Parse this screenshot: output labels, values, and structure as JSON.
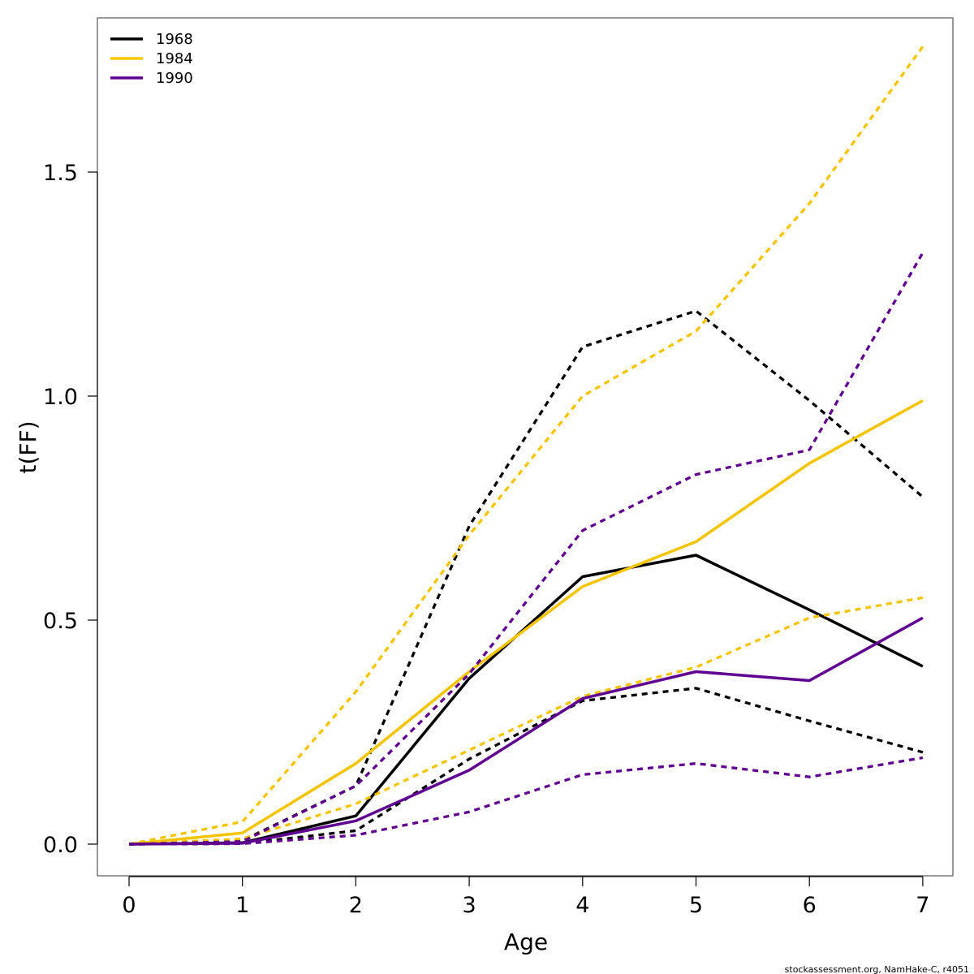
{
  "chart_data": {
    "type": "line",
    "xlabel": "Age",
    "ylabel": "t(FF)",
    "xlim": [
      0,
      7
    ],
    "ylim": [
      0,
      1.8
    ],
    "xticks": [
      "0",
      "1",
      "2",
      "3",
      "4",
      "5",
      "6",
      "7"
    ],
    "yticks": [
      "0.0",
      "0.5",
      "1.0",
      "1.5"
    ],
    "x": [
      0,
      1,
      2,
      3,
      4,
      5,
      6,
      7
    ],
    "legend_position": "top-left",
    "grid": false,
    "series": [
      {
        "name": "1968",
        "color": "#000000",
        "style": "solid",
        "values": [
          0.0,
          0.003,
          0.063,
          0.37,
          0.597,
          0.645,
          0.523,
          0.397
        ]
      },
      {
        "name": "",
        "color": "#000000",
        "style": "dashed",
        "values": [
          0.0,
          0.008,
          0.13,
          0.71,
          1.11,
          1.19,
          0.99,
          0.775
        ]
      },
      {
        "name": "",
        "color": "#000000",
        "style": "dashed",
        "values": [
          0.0,
          0.001,
          0.03,
          0.19,
          0.32,
          0.348,
          0.275,
          0.205
        ]
      },
      {
        "name": "1984",
        "color": "#F5C400",
        "style": "solid",
        "values": [
          0.0,
          0.025,
          0.18,
          0.385,
          0.575,
          0.675,
          0.85,
          0.99
        ]
      },
      {
        "name": "",
        "color": "#F5C400",
        "style": "dashed",
        "values": [
          0.0,
          0.05,
          0.34,
          0.69,
          1.0,
          1.145,
          1.43,
          1.78
        ]
      },
      {
        "name": "",
        "color": "#F5C400",
        "style": "dashed",
        "values": [
          0.0,
          0.012,
          0.09,
          0.21,
          0.33,
          0.395,
          0.505,
          0.55
        ]
      },
      {
        "name": "1990",
        "color": "#5F0090",
        "style": "solid",
        "values": [
          0.0,
          0.002,
          0.052,
          0.165,
          0.325,
          0.385,
          0.365,
          0.505
        ]
      },
      {
        "name": "",
        "color": "#5F0090",
        "style": "dashed",
        "values": [
          0.0,
          0.006,
          0.13,
          0.38,
          0.7,
          0.825,
          0.88,
          1.32
        ]
      },
      {
        "name": "",
        "color": "#5F0090",
        "style": "dashed",
        "values": [
          0.0,
          0.001,
          0.02,
          0.072,
          0.155,
          0.18,
          0.15,
          0.193
        ]
      }
    ]
  },
  "footer": {
    "credit": "stockassessment.org, NamHake-C, r4051"
  }
}
